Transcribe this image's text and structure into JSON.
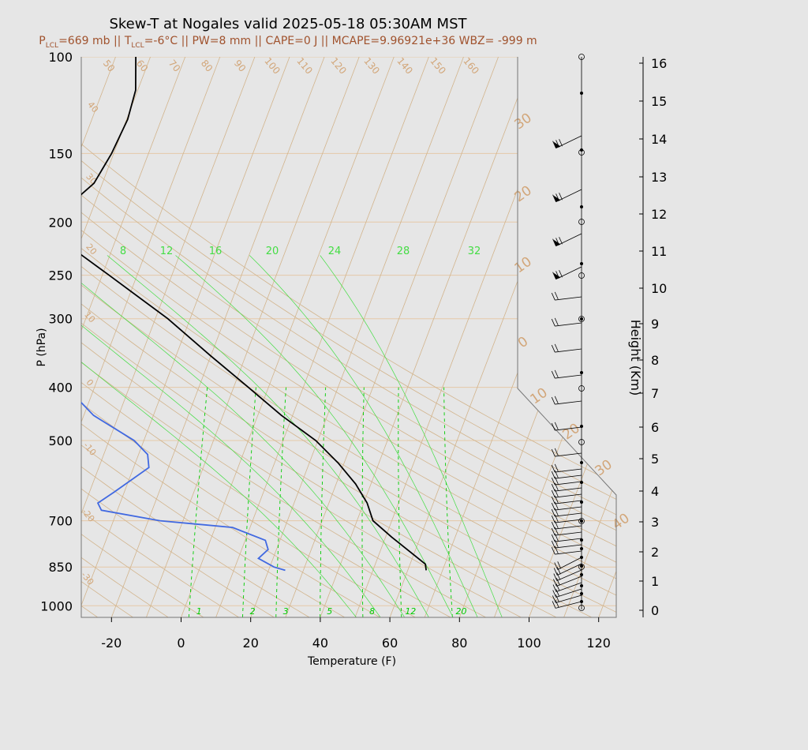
{
  "title": "Skew-T at Nogales valid 2025-05-18 05:30AM MST",
  "subtitle": {
    "plcl_label": "P",
    "plcl_sub": "LCL",
    "plcl_value": "=669 mb || T",
    "tlcl_sub": "LCL",
    "tlcl_value": "=-6°C || PW=8 mm || CAPE=0 J || MCAPE=9.96921e+36 WBZ= -999 m"
  },
  "chart_data": {
    "type": "line",
    "title": "Skew-T at Nogales valid 2025-05-18 05:30AM MST",
    "xlabel": "Temperature (F)",
    "ylabel": "P (hPa)",
    "y2label": "Height (Km)",
    "xlim": [
      -28,
      125
    ],
    "xticks": [
      -20,
      0,
      20,
      40,
      60,
      80,
      100,
      120
    ],
    "pressure_ticks": [
      100,
      150,
      200,
      250,
      300,
      400,
      500,
      700,
      850,
      1000
    ],
    "height_ticks": [
      0,
      1,
      2,
      3,
      4,
      5,
      6,
      7,
      8,
      9,
      10,
      11,
      12,
      13,
      14,
      15,
      16
    ],
    "temperature_series": {
      "name": "",
      "color": "#000000",
      "points": [
        {
          "p": 100,
          "t": -59
        },
        {
          "p": 115,
          "t": -57
        },
        {
          "p": 130,
          "t": -56.5
        },
        {
          "p": 150,
          "t": -57
        },
        {
          "p": 170,
          "t": -58
        },
        {
          "p": 195,
          "t": -62
        },
        {
          "p": 225,
          "t": -57
        },
        {
          "p": 250,
          "t": -50
        },
        {
          "p": 300,
          "t": -38
        },
        {
          "p": 350,
          "t": -29
        },
        {
          "p": 400,
          "t": -21
        },
        {
          "p": 450,
          "t": -14
        },
        {
          "p": 500,
          "t": -7
        },
        {
          "p": 550,
          "t": -2
        },
        {
          "p": 600,
          "t": 2
        },
        {
          "p": 650,
          "t": 5
        },
        {
          "p": 700,
          "t": 7
        },
        {
          "p": 750,
          "t": 11
        },
        {
          "p": 800,
          "t": 15
        },
        {
          "p": 840,
          "t": 18
        },
        {
          "p": 862,
          "t": 18.5
        }
      ]
    },
    "dewpoint_series": {
      "name": "",
      "color": "#4169e1",
      "points": [
        {
          "p": 100,
          "t": -82
        },
        {
          "p": 125,
          "t": -87
        },
        {
          "p": 165,
          "t": -90
        },
        {
          "p": 190,
          "t": -80
        },
        {
          "p": 225,
          "t": -68
        },
        {
          "p": 250,
          "t": -66
        },
        {
          "p": 300,
          "t": -60
        },
        {
          "p": 350,
          "t": -55
        },
        {
          "p": 400,
          "t": -50
        },
        {
          "p": 450,
          "t": -44
        },
        {
          "p": 500,
          "t": -36
        },
        {
          "p": 530,
          "t": -33
        },
        {
          "p": 560,
          "t": -32
        },
        {
          "p": 620,
          "t": -36
        },
        {
          "p": 650,
          "t": -38
        },
        {
          "p": 670,
          "t": -37
        },
        {
          "p": 700,
          "t": -27
        },
        {
          "p": 720,
          "t": -15
        },
        {
          "p": 760,
          "t": -9
        },
        {
          "p": 790,
          "t": -8
        },
        {
          "p": 820,
          "t": -9
        },
        {
          "p": 850,
          "t": -6
        },
        {
          "p": 862,
          "t": -4
        }
      ]
    },
    "isotherm_labels_f": [
      30,
      20,
      10,
      0,
      -10,
      20,
      30,
      40,
      50,
      60,
      70,
      80,
      90,
      100,
      110,
      120,
      130,
      140,
      150,
      160
    ],
    "mixing_ratio_labels": [
      "1",
      "2",
      "3",
      "5",
      "8",
      "12",
      "20"
    ],
    "wetbulb_labels": [
      "8",
      "12",
      "16",
      "20",
      "24",
      "28",
      "32"
    ],
    "dry_adiabat_labels_f": [
      "50",
      "60",
      "70",
      "80",
      "90",
      "100",
      "110",
      "120",
      "130",
      "140",
      "150",
      "160",
      "40",
      "30",
      "20",
      "10",
      "0",
      "-10",
      "-20",
      "-30"
    ],
    "isotherm_margin_labels": [
      "30",
      "20",
      "10",
      "0",
      "10",
      "20",
      "30",
      "40"
    ],
    "wind_profile": {
      "note_heights_km": [
        0,
        0.3,
        0.6,
        1,
        1.5,
        2,
        2.5,
        3,
        3.5,
        4,
        4.5,
        5,
        5.5,
        6,
        6.5,
        7,
        7.5,
        8,
        9,
        10,
        10.5,
        11,
        12,
        12.5,
        13,
        14,
        15,
        15.5,
        16
      ],
      "station_marker_heights_km": [
        0,
        1.5,
        3,
        5.5,
        7,
        9,
        10,
        11.5,
        13,
        16
      ]
    },
    "colors": {
      "background": "#e6e6e6",
      "grid_isobar": "#e5c9a8",
      "grid_skew": "#d2b48c",
      "label_tan": "#d2a679",
      "mixing_green": "#00cc00",
      "wetbulb_green": "#44dd44",
      "temperature": "#000000",
      "dewpoint": "#4169e1"
    }
  }
}
